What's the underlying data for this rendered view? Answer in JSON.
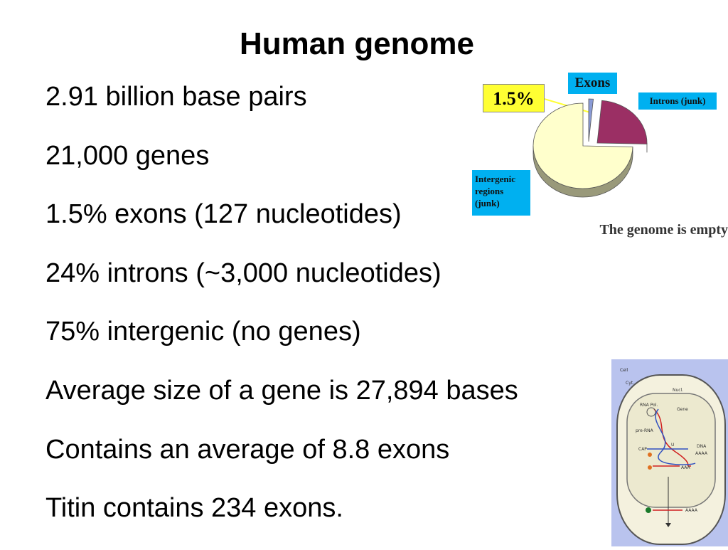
{
  "slide": {
    "title": "Human genome",
    "bullets": [
      "2.91 billion base pairs",
      "21,000 genes",
      "1.5% exons (127 nucleotides)",
      "24% introns (~3,000 nucleotides)",
      "75% intergenic (no genes)",
      "Average size of a gene is 27,894 bases",
      "Contains an average of 8.8 exons",
      "Titin contains 234 exons."
    ]
  },
  "pie_figure": {
    "label_exons": "Exons",
    "label_pct": "1.5%",
    "label_introns": "Introns (junk)",
    "label_intergenic": "Intergenic regions (junk)",
    "caption": "The genome is empty",
    "colors": {
      "exons": "#8a9bd6",
      "introns": "#9b2f64",
      "intergenic": "#ffffcc",
      "tag": "#00b0f0",
      "pct_tag": "#ffff33"
    }
  },
  "chart_data": {
    "type": "pie",
    "categories": [
      "Exons",
      "Introns (junk)",
      "Intergenic regions (junk)"
    ],
    "values": [
      1.5,
      24,
      75
    ]
  },
  "cell_figure": {
    "labels": [
      "Cell",
      "Cyt.",
      "Nucl.",
      "RNA Pol.",
      "Gene",
      "pre-RNA",
      "CAP",
      "U",
      "DNA",
      "AAAA",
      "AAA",
      "AAAA"
    ]
  }
}
